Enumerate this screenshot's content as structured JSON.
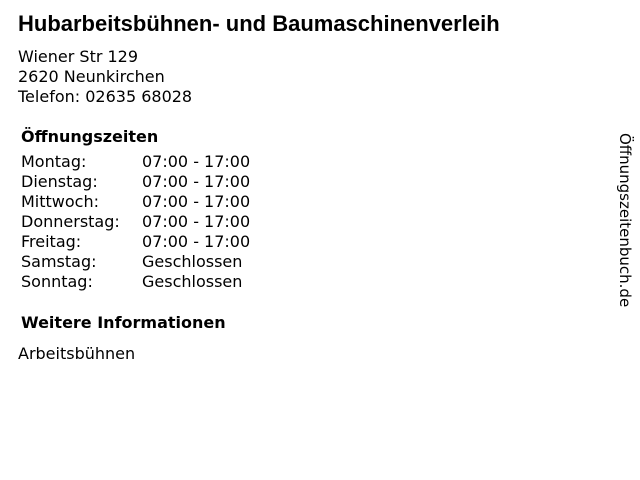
{
  "business": {
    "name": "Hubarbeitsbühnen- und Baumaschinenverleih",
    "street": "Wiener Str 129",
    "city": "2620 Neunkirchen",
    "phone": "Telefon: 02635 68028"
  },
  "hours": {
    "heading": "Öffnungszeiten",
    "rows": [
      {
        "day": "Montag:",
        "time": "07:00 - 17:00"
      },
      {
        "day": "Dienstag:",
        "time": "07:00 - 17:00"
      },
      {
        "day": "Mittwoch:",
        "time": "07:00 - 17:00"
      },
      {
        "day": "Donnerstag:",
        "time": "07:00 - 17:00"
      },
      {
        "day": "Freitag:",
        "time": "07:00 - 17:00"
      },
      {
        "day": "Samstag:",
        "time": "Geschlossen"
      },
      {
        "day": "Sonntag:",
        "time": "Geschlossen"
      }
    ]
  },
  "info": {
    "heading": "Weitere Informationen",
    "text": "Arbeitsbühnen"
  },
  "watermark": {
    "text": "Öffnungszeitenbuch.de"
  },
  "colors": {
    "text": "#000000",
    "background": "#ffffff"
  }
}
